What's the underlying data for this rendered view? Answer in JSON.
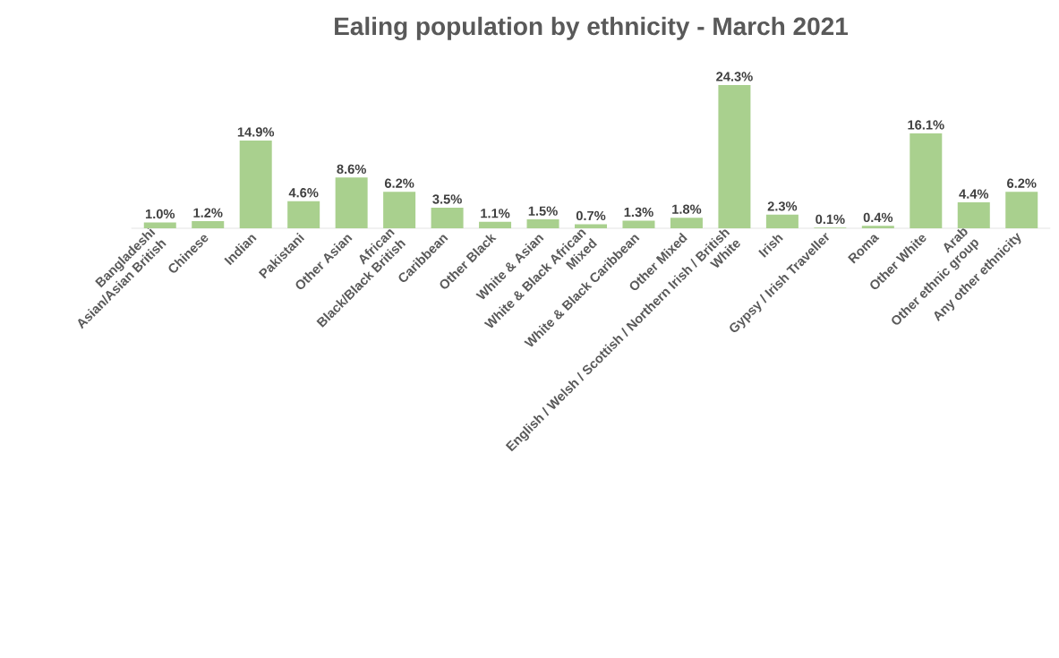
{
  "chart_data": {
    "type": "bar",
    "title": "Ealing population by ethnicity - March 2021",
    "categories": [
      "Bangladeshi",
      "Chinese",
      "Indian",
      "Pakistani",
      "Other Asian",
      "African",
      "Caribbean",
      "Other Black",
      "White & Asian",
      "White & Black African",
      "White & Black Caribbean",
      "Other Mixed",
      "English / Welsh / Scottish / Northern Irish / British",
      "Irish",
      "Gypsy / Irish Traveller",
      "Roma",
      "Other White",
      "Arab",
      "Any other ethnicity"
    ],
    "values": [
      1.0,
      1.2,
      14.9,
      4.6,
      8.6,
      6.2,
      3.5,
      1.1,
      1.5,
      0.7,
      1.3,
      1.8,
      24.3,
      2.3,
      0.1,
      0.4,
      16.1,
      4.4,
      6.2
    ],
    "value_labels": [
      "1.0%",
      "1.2%",
      "14.9%",
      "4.6%",
      "8.6%",
      "6.2%",
      "3.5%",
      "1.1%",
      "1.5%",
      "0.7%",
      "1.3%",
      "1.8%",
      "24.3%",
      "2.3%",
      "0.1%",
      "0.4%",
      "16.1%",
      "4.4%",
      "6.2%"
    ],
    "color": "#a9d08e",
    "relative": false,
    "annotations": [
      "Asian/Asian British",
      "Black/Black British",
      "Mixed",
      "White",
      "Other ethnic group"
    ]
  }
}
